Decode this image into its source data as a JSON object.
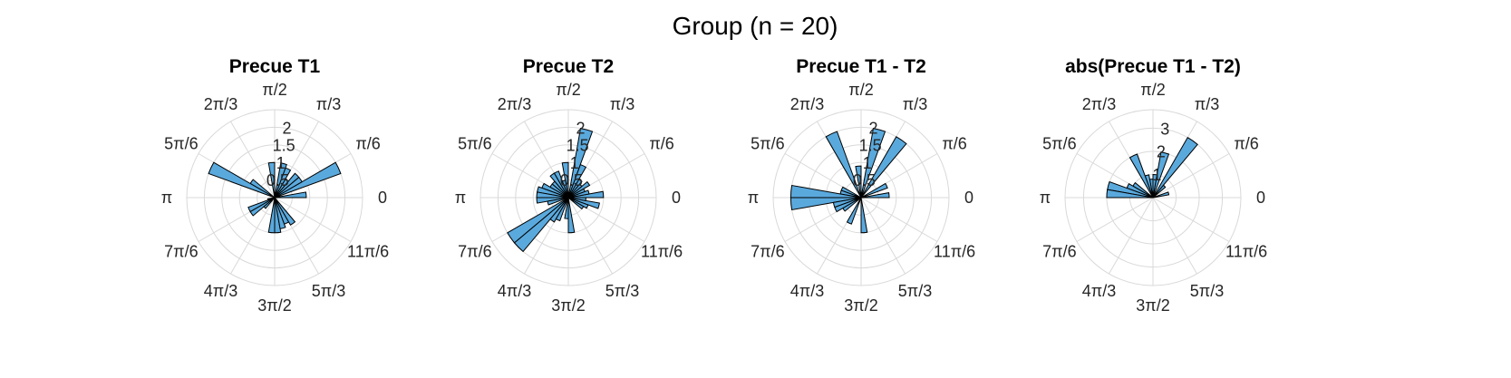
{
  "figure": {
    "title": "Group (n = 20)",
    "bar_color": "#5aa9dd",
    "edge_color": "#000000",
    "grid_color": "#d9d9d9"
  },
  "chart_data": [
    {
      "type": "polar-histogram",
      "title": "Precue T1",
      "rlim": [
        0,
        2.5
      ],
      "r_ticks": [
        0.5,
        1,
        1.5,
        2
      ],
      "r_tick_labels": [
        "0.5",
        "1",
        "1.5",
        "2"
      ],
      "theta_ticks": [
        "0",
        "π/6",
        "π/3",
        "π/2",
        "2π/3",
        "5π/6",
        "π",
        "7π/6",
        "4π/3",
        "3π/2",
        "5π/3",
        "11π/6"
      ],
      "bin_width_deg": 10,
      "bins_center_deg": [
        5,
        15,
        25,
        35,
        45,
        55,
        65,
        75,
        85,
        95,
        105,
        115,
        125,
        135,
        145,
        155,
        165,
        175,
        185,
        195,
        205,
        215,
        225,
        235,
        245,
        255,
        265,
        275,
        285,
        295,
        305,
        315,
        325,
        335,
        345,
        355
      ],
      "values": [
        0.9,
        0.0,
        2.0,
        0.9,
        0.9,
        0.6,
        0.9,
        1.0,
        0.0,
        1.0,
        0.0,
        0.0,
        0.0,
        0.0,
        0.8,
        2.0,
        0.0,
        0.0,
        0.0,
        0.2,
        0.8,
        0.8,
        0.4,
        0.0,
        0.0,
        0.0,
        1.0,
        1.0,
        0.9,
        0.8,
        0.9,
        0.0,
        0.0,
        0.0,
        0.0,
        0.0
      ]
    },
    {
      "type": "polar-histogram",
      "title": "Precue T2",
      "rlim": [
        0,
        2.5
      ],
      "r_ticks": [
        0.5,
        1,
        1.5,
        2
      ],
      "r_tick_labels": [
        "0.5",
        "1",
        "1.5",
        "2"
      ],
      "theta_ticks": [
        "0",
        "π/6",
        "π/3",
        "π/2",
        "2π/3",
        "5π/6",
        "π",
        "7π/6",
        "4π/3",
        "3π/2",
        "5π/3",
        "11π/6"
      ],
      "bin_width_deg": 10,
      "bins_center_deg": [
        5,
        15,
        25,
        35,
        45,
        55,
        65,
        75,
        85,
        95,
        105,
        115,
        125,
        135,
        145,
        155,
        165,
        175,
        185,
        195,
        205,
        215,
        225,
        235,
        245,
        255,
        265,
        275,
        285,
        295,
        305,
        315,
        325,
        335,
        345,
        355
      ],
      "values": [
        1.0,
        0.6,
        0.5,
        0.7,
        0.5,
        0.6,
        1.0,
        2.0,
        0.0,
        1.0,
        0.5,
        0.8,
        0.8,
        0.6,
        0.6,
        0.8,
        0.9,
        0.9,
        0.9,
        0.6,
        0.0,
        2.0,
        2.0,
        0.8,
        0.7,
        0.0,
        0.6,
        1.0,
        0.0,
        0.0,
        0.0,
        0.0,
        0.5,
        0.6,
        0.9,
        0.5
      ]
    },
    {
      "type": "polar-histogram",
      "title": "Precue T1 - T2",
      "rlim": [
        0,
        2.5
      ],
      "r_ticks": [
        0.5,
        1,
        1.5,
        2
      ],
      "r_tick_labels": [
        "0.5",
        "1",
        "1.5",
        "2"
      ],
      "theta_ticks": [
        "0",
        "π/6",
        "π/3",
        "π/2",
        "2π/3",
        "5π/6",
        "π",
        "7π/6",
        "4π/3",
        "3π/2",
        "5π/3",
        "11π/6"
      ],
      "bin_width_deg": 10,
      "bins_center_deg": [
        5,
        15,
        25,
        35,
        45,
        55,
        65,
        75,
        85,
        95,
        105,
        115,
        125,
        135,
        145,
        155,
        165,
        175,
        185,
        195,
        205,
        215,
        225,
        235,
        245,
        255,
        265,
        275,
        285,
        295,
        305,
        315,
        325,
        335,
        345,
        355
      ],
      "values": [
        0.8,
        0.0,
        0.8,
        0.0,
        0.0,
        2.0,
        0.0,
        2.0,
        0.0,
        0.9,
        0.0,
        2.0,
        0.0,
        0.0,
        0.0,
        0.6,
        0.6,
        2.0,
        2.0,
        0.8,
        0.8,
        0.6,
        0.0,
        0.0,
        0.8,
        0.0,
        0.0,
        1.0,
        0.0,
        0.0,
        0.0,
        0.0,
        0.0,
        0.0,
        0.0,
        0.0
      ]
    },
    {
      "type": "polar-histogram",
      "title": "abs(Precue T1 - T2)",
      "rlim": [
        0,
        3.8
      ],
      "r_ticks": [
        1,
        2,
        3
      ],
      "r_tick_labels": [
        "1",
        "2",
        "3"
      ],
      "theta_ticks": [
        "0",
        "π/6",
        "π/3",
        "π/2",
        "2π/3",
        "5π/6",
        "π",
        "7π/6",
        "4π/3",
        "3π/2",
        "5π/3",
        "11π/6"
      ],
      "bin_width_deg": 10,
      "bins_center_deg": [
        5,
        15,
        25,
        35,
        45,
        55,
        65,
        75,
        85,
        95,
        105,
        115,
        125,
        135,
        145,
        155,
        165,
        175,
        185,
        195,
        205,
        215,
        225,
        235,
        245,
        255,
        265,
        275,
        285,
        295,
        305,
        315,
        325,
        335,
        345,
        355
      ],
      "values": [
        0.0,
        0.7,
        0.0,
        0.0,
        0.7,
        3.0,
        0.0,
        2.0,
        1.0,
        0.8,
        1.0,
        2.0,
        0.0,
        0.0,
        1.0,
        1.2,
        2.0,
        2.0,
        0.0,
        0.0,
        0.0,
        0.0,
        0.0,
        0.0,
        0.0,
        0.0,
        0.0,
        0.0,
        0.0,
        0.0,
        0.0,
        0.0,
        0.0,
        0.0,
        0.0,
        0.0
      ]
    }
  ]
}
